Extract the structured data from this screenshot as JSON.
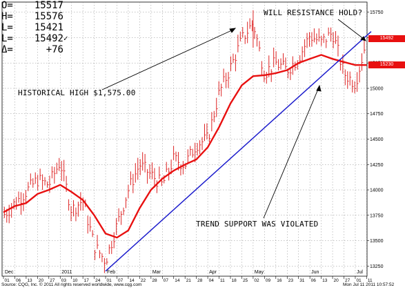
{
  "quote_box": {
    "rows": [
      {
        "label": "O=",
        "value": "15517",
        "mark": ""
      },
      {
        "label": "H=",
        "value": "15576",
        "mark": ""
      },
      {
        "label": "L=",
        "value": "15421",
        "mark": ""
      },
      {
        "label": "L=",
        "value": "15492",
        "mark": "✓"
      },
      {
        "label": "Δ=",
        "value": "+76",
        "mark": ""
      }
    ]
  },
  "annotations": {
    "resistance": "WILL RESISTANCE HOLD?",
    "high": "HISTORICAL HIGH $1,575.00",
    "support": "TREND SUPPORT WAS VIOLATED"
  },
  "footer": {
    "source": "Source: CQG, Inc. © 2011 All rights reserved worldwide, www.cqg.com",
    "timestamp": "Mon Jul 11 2011 10:57:52"
  },
  "colors": {
    "bars": "#dd2222",
    "moving_average": "#e81010",
    "trendline": "#1c1ccc",
    "last_price_tag": "#e81010",
    "ma_tag": "#e81010",
    "grid": "#8a8a8a"
  },
  "chart_data": {
    "type": "bar",
    "price_axis": {
      "min": 13150,
      "max": 15850,
      "ticks": [
        13250,
        13500,
        13750,
        14000,
        14250,
        14500,
        14750,
        15000,
        15250,
        15500,
        15750
      ],
      "tick_labels": [
        "13250",
        "13500",
        "13750",
        "14000",
        "14250",
        "14500",
        "14750",
        "15000",
        "15250",
        "15500",
        "15750"
      ]
    },
    "time_axis": {
      "day_ticks": [
        "01",
        "06",
        "13",
        "20",
        "27",
        "03",
        "10",
        "17",
        "24",
        "01",
        "07",
        "14",
        "22",
        "28",
        "07",
        "14",
        "21",
        "28",
        "04",
        "11",
        "18",
        "25",
        "02",
        "09",
        "16",
        "23",
        "31",
        "06",
        "13",
        "20",
        "27",
        "01",
        "11"
      ],
      "month_labels": [
        {
          "label": "Dec",
          "tick_index": 0
        },
        {
          "label": "2011",
          "tick_index": 5
        },
        {
          "label": "Feb",
          "tick_index": 9
        },
        {
          "label": "Mar",
          "tick_index": 13
        },
        {
          "label": "Apr",
          "tick_index": 18
        },
        {
          "label": "May",
          "tick_index": 22
        },
        {
          "label": "Jun",
          "tick_index": 27
        },
        {
          "label": "Jul",
          "tick_index": 31
        }
      ]
    },
    "grid": true,
    "price_tags": [
      {
        "label": "15492",
        "value": 15492
      },
      {
        "label": "15230",
        "value": 15230
      }
    ],
    "price_path": [
      {
        "t": 0,
        "p": 13750
      },
      {
        "t": 3,
        "p": 14100
      },
      {
        "t": 4,
        "p": 14050
      },
      {
        "t": 5,
        "p": 14280
      },
      {
        "t": 6,
        "p": 13800
      },
      {
        "t": 7,
        "p": 13900
      },
      {
        "t": 8,
        "p": 13450
      },
      {
        "t": 9,
        "p": 13300
      },
      {
        "t": 10,
        "p": 13650
      },
      {
        "t": 11,
        "p": 14000
      },
      {
        "t": 12,
        "p": 14250
      },
      {
        "t": 13,
        "p": 14150
      },
      {
        "t": 14,
        "p": 14050
      },
      {
        "t": 15,
        "p": 14300
      },
      {
        "t": 16,
        "p": 14250
      },
      {
        "t": 17,
        "p": 14450
      },
      {
        "t": 18,
        "p": 14500
      },
      {
        "t": 19,
        "p": 14950
      },
      {
        "t": 20,
        "p": 15200
      },
      {
        "t": 21,
        "p": 15480
      },
      {
        "t": 22,
        "p": 15650
      },
      {
        "t": 23,
        "p": 15150
      },
      {
        "t": 24,
        "p": 15250
      },
      {
        "t": 25,
        "p": 15180
      },
      {
        "t": 26,
        "p": 15300
      },
      {
        "t": 27,
        "p": 15520
      },
      {
        "t": 28,
        "p": 15450
      },
      {
        "t": 29,
        "p": 15550
      },
      {
        "t": 30,
        "p": 15150
      },
      {
        "t": 31,
        "p": 15050
      },
      {
        "t": 31.6,
        "p": 15300
      },
      {
        "t": 32,
        "p": 15492
      }
    ],
    "moving_average": [
      {
        "t": 0,
        "p": 13780
      },
      {
        "t": 1,
        "p": 13840
      },
      {
        "t": 2,
        "p": 13870
      },
      {
        "t": 3,
        "p": 13960
      },
      {
        "t": 4,
        "p": 14000
      },
      {
        "t": 5,
        "p": 14050
      },
      {
        "t": 6,
        "p": 13980
      },
      {
        "t": 7,
        "p": 13900
      },
      {
        "t": 8,
        "p": 13750
      },
      {
        "t": 9,
        "p": 13570
      },
      {
        "t": 10,
        "p": 13530
      },
      {
        "t": 11,
        "p": 13600
      },
      {
        "t": 12,
        "p": 13820
      },
      {
        "t": 13,
        "p": 14000
      },
      {
        "t": 14,
        "p": 14110
      },
      {
        "t": 15,
        "p": 14190
      },
      {
        "t": 16,
        "p": 14250
      },
      {
        "t": 17,
        "p": 14300
      },
      {
        "t": 18,
        "p": 14420
      },
      {
        "t": 19,
        "p": 14620
      },
      {
        "t": 20,
        "p": 14850
      },
      {
        "t": 21,
        "p": 15030
      },
      {
        "t": 22,
        "p": 15120
      },
      {
        "t": 23,
        "p": 15130
      },
      {
        "t": 24,
        "p": 15150
      },
      {
        "t": 25,
        "p": 15180
      },
      {
        "t": 26,
        "p": 15250
      },
      {
        "t": 27,
        "p": 15290
      },
      {
        "t": 28,
        "p": 15330
      },
      {
        "t": 29,
        "p": 15290
      },
      {
        "t": 30,
        "p": 15260
      },
      {
        "t": 31,
        "p": 15230
      },
      {
        "t": 32,
        "p": 15230
      }
    ],
    "trendline": {
      "start": {
        "t": 9,
        "p": 13200
      },
      "end": {
        "t": 32.4,
        "p": 15560
      }
    }
  }
}
